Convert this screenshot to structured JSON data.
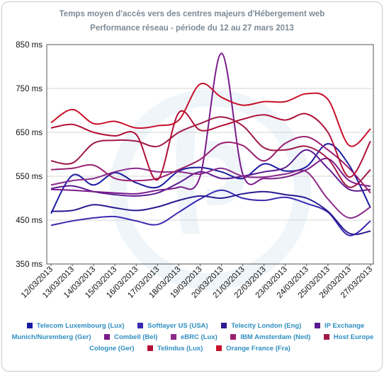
{
  "chart_data": {
    "type": "line",
    "title": "Temps moyen d'accès vers des centres majeurs d'Hébergement web",
    "subtitle": "Performance réseau - période du 12 au 27 mars 2013",
    "xlabel": "",
    "ylabel": "",
    "ylim": [
      350,
      850
    ],
    "yticks": [
      "350 ms",
      "450 ms",
      "550 ms",
      "650 ms",
      "750 ms",
      "850 ms"
    ],
    "categories": [
      "12/03/2013",
      "13/03/2013",
      "14/03/2013",
      "15/03/2013",
      "16/03/2013",
      "17/03/2013",
      "18/03/2013",
      "19/03/2013",
      "20/03/2013",
      "21/03/2013",
      "22/03/2013",
      "23/03/2013",
      "24/03/2013",
      "25/03/2013",
      "26/03/2013",
      "27/03/2013"
    ],
    "grid": true,
    "legend_position": "bottom",
    "series": [
      {
        "name": "Telecom Luxembourg (Lux)",
        "color": "#1a1aa0",
        "values": [
          465,
          552,
          530,
          558,
          535,
          525,
          562,
          570,
          560,
          545,
          578,
          562,
          572,
          624,
          575,
          478
        ]
      },
      {
        "name": "Softlayer US (USA)",
        "color": "#3a2ab0",
        "values": [
          438,
          448,
          455,
          458,
          448,
          440,
          468,
          498,
          518,
          500,
          495,
          502,
          488,
          468,
          415,
          448
        ]
      },
      {
        "name": "Telecity London (Eng)",
        "color": "#2a1a90",
        "values": [
          470,
          472,
          485,
          478,
          472,
          480,
          495,
          505,
          500,
          510,
          515,
          508,
          500,
          470,
          420,
          425
        ]
      },
      {
        "name": "IP Exchange Munich/Nuremberg (Ger)",
        "color": "#5a1a90",
        "values": [
          522,
          528,
          515,
          508,
          505,
          512,
          535,
          560,
          545,
          550,
          560,
          570,
          610,
          568,
          520,
          520
        ]
      },
      {
        "name": "Combell (Bel)",
        "color": "#7a1a8a",
        "values": [
          520,
          518,
          515,
          512,
          510,
          518,
          525,
          550,
          830,
          555,
          545,
          548,
          565,
          590,
          540,
          527
        ]
      },
      {
        "name": "eBRC (Lux)",
        "color": "#8a2a8a",
        "values": [
          530,
          540,
          545,
          560,
          568,
          560,
          560,
          555,
          568,
          550,
          548,
          555,
          560,
          498,
          455,
          480
        ]
      },
      {
        "name": "IBM Amsterdam (Ned)",
        "color": "#9a2070",
        "values": [
          565,
          568,
          575,
          545,
          540,
          545,
          565,
          588,
          625,
          620,
          585,
          625,
          640,
          610,
          568,
          512
        ]
      },
      {
        "name": "Host Europe Cologne (Ger)",
        "color": "#a01848",
        "values": [
          585,
          580,
          625,
          632,
          630,
          618,
          650,
          670,
          685,
          665,
          615,
          610,
          618,
          590,
          525,
          565
        ]
      },
      {
        "name": "Telindus (Lux)",
        "color": "#b01038",
        "values": [
          660,
          668,
          650,
          642,
          645,
          542,
          695,
          655,
          665,
          680,
          690,
          678,
          692,
          650,
          548,
          630
        ]
      },
      {
        "name": "Orange France (Fra)",
        "color": "#c8102a",
        "values": [
          672,
          702,
          670,
          675,
          660,
          665,
          678,
          760,
          730,
          712,
          720,
          720,
          738,
          725,
          620,
          658
        ]
      }
    ]
  }
}
